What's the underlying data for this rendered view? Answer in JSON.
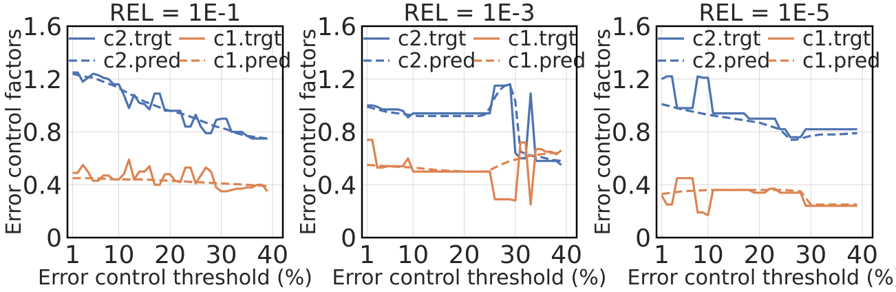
{
  "colors": {
    "c2": "#4c72b0",
    "c1": "#dd8452",
    "grid": "#d9d9d9",
    "axis": "#000000"
  },
  "chart_data": [
    {
      "type": "line",
      "title": "REL = 1E-1",
      "xlabel": "Error control threshold (%)",
      "ylabel": "Error control factors",
      "xlim": [
        0,
        42
      ],
      "ylim": [
        0,
        1.6
      ],
      "xticks": [
        1,
        10,
        20,
        30,
        40
      ],
      "yticks": [
        "0",
        "0.4",
        "0.8",
        "1.2",
        "1.6"
      ],
      "grid": true,
      "legend": "top, 2 columns",
      "series": [
        {
          "name": "c2.trgt",
          "style": "solid",
          "color": "c2",
          "x": [
            1,
            2,
            3,
            4,
            5,
            6,
            7,
            8,
            9,
            10,
            11,
            12,
            13,
            14,
            15,
            16,
            17,
            18,
            19,
            20,
            21,
            22,
            23,
            24,
            25,
            26,
            27,
            28,
            29,
            30,
            31,
            32,
            33,
            34,
            35,
            36,
            37,
            38,
            39
          ],
          "y": [
            1.25,
            1.25,
            1.18,
            1.21,
            1.24,
            1.23,
            1.21,
            1.2,
            1.16,
            1.16,
            1.08,
            0.98,
            1.08,
            1.02,
            1.01,
            0.97,
            1.09,
            1.09,
            0.96,
            0.96,
            0.96,
            0.96,
            0.84,
            0.84,
            0.93,
            0.84,
            0.79,
            0.79,
            0.89,
            0.9,
            0.9,
            0.8,
            0.8,
            0.8,
            0.77,
            0.75,
            0.75,
            0.75,
            0.75
          ]
        },
        {
          "name": "c2.pred",
          "style": "dashed",
          "color": "c2",
          "x": [
            1,
            3,
            5,
            7,
            9,
            11,
            13,
            15,
            17,
            19,
            21,
            23,
            25,
            27,
            29,
            31,
            33,
            35,
            37,
            39
          ],
          "y": [
            1.24,
            1.22,
            1.21,
            1.18,
            1.15,
            1.11,
            1.07,
            1.03,
            1.0,
            0.97,
            0.95,
            0.93,
            0.9,
            0.87,
            0.84,
            0.82,
            0.79,
            0.77,
            0.76,
            0.75
          ]
        },
        {
          "name": "c1.trgt",
          "style": "solid",
          "color": "c1",
          "x": [
            1,
            2,
            3,
            4,
            5,
            6,
            7,
            8,
            9,
            10,
            11,
            12,
            13,
            14,
            15,
            16,
            17,
            18,
            19,
            20,
            21,
            22,
            23,
            24,
            25,
            26,
            27,
            28,
            29,
            30,
            31,
            32,
            33,
            34,
            35,
            36,
            37,
            38,
            39
          ],
          "y": [
            0.49,
            0.49,
            0.55,
            0.5,
            0.43,
            0.43,
            0.47,
            0.47,
            0.44,
            0.44,
            0.48,
            0.59,
            0.44,
            0.5,
            0.5,
            0.54,
            0.4,
            0.4,
            0.48,
            0.48,
            0.43,
            0.42,
            0.53,
            0.53,
            0.41,
            0.47,
            0.53,
            0.5,
            0.38,
            0.35,
            0.35,
            0.36,
            0.37,
            0.37,
            0.38,
            0.38,
            0.4,
            0.4,
            0.35
          ]
        },
        {
          "name": "c1.pred",
          "style": "dashed",
          "color": "c1",
          "x": [
            1,
            5,
            10,
            15,
            20,
            25,
            30,
            35,
            39
          ],
          "y": [
            0.45,
            0.45,
            0.44,
            0.44,
            0.43,
            0.42,
            0.41,
            0.4,
            0.39
          ]
        }
      ]
    },
    {
      "type": "line",
      "title": "REL = 1E-3",
      "xlabel": "Error control threshold (%)",
      "ylabel": "Error control factors",
      "xlim": [
        0,
        42
      ],
      "ylim": [
        0,
        1.6
      ],
      "xticks": [
        1,
        10,
        20,
        30,
        40
      ],
      "yticks": [
        "0",
        "0.4",
        "0.8",
        "1.2",
        "1.6"
      ],
      "grid": true,
      "legend": "top, 2 columns",
      "series": [
        {
          "name": "c2.trgt",
          "style": "solid",
          "color": "c2",
          "x": [
            1,
            2,
            3,
            4,
            5,
            6,
            7,
            8,
            9,
            10,
            11,
            12,
            13,
            14,
            15,
            16,
            17,
            18,
            19,
            20,
            21,
            22,
            23,
            24,
            25,
            26,
            27,
            28,
            29,
            30,
            31,
            32,
            33,
            34,
            35,
            36,
            37,
            38,
            39
          ],
          "y": [
            1.0,
            1.0,
            0.99,
            0.97,
            0.97,
            0.97,
            0.97,
            0.96,
            0.91,
            0.94,
            0.94,
            0.94,
            0.94,
            0.94,
            0.94,
            0.94,
            0.94,
            0.94,
            0.94,
            0.94,
            0.94,
            0.94,
            0.94,
            0.94,
            0.94,
            1.15,
            1.15,
            1.15,
            1.16,
            0.64,
            0.6,
            0.6,
            1.09,
            0.58,
            0.58,
            0.58,
            0.58,
            0.58,
            0.55
          ]
        },
        {
          "name": "c2.pred",
          "style": "dashed",
          "color": "c2",
          "x": [
            1,
            3,
            5,
            7,
            9,
            11,
            13,
            15,
            17,
            19,
            21,
            23,
            24,
            25,
            26,
            27,
            28,
            29,
            30,
            31,
            33,
            35,
            37,
            39
          ],
          "y": [
            0.99,
            0.97,
            0.95,
            0.94,
            0.93,
            0.92,
            0.92,
            0.92,
            0.92,
            0.92,
            0.92,
            0.92,
            0.93,
            0.98,
            1.06,
            1.12,
            1.15,
            1.15,
            1.03,
            0.65,
            0.62,
            0.61,
            0.59,
            0.58
          ]
        },
        {
          "name": "c1.trgt",
          "style": "solid",
          "color": "c1",
          "x": [
            1,
            2,
            3,
            4,
            5,
            6,
            7,
            8,
            9,
            10,
            11,
            12,
            13,
            14,
            15,
            16,
            17,
            18,
            19,
            20,
            21,
            22,
            23,
            24,
            25,
            26,
            27,
            28,
            29,
            30,
            31,
            32,
            33,
            34,
            35,
            36,
            37,
            38,
            39
          ],
          "y": [
            0.74,
            0.74,
            0.53,
            0.53,
            0.54,
            0.54,
            0.54,
            0.54,
            0.6,
            0.5,
            0.5,
            0.5,
            0.5,
            0.5,
            0.5,
            0.5,
            0.5,
            0.5,
            0.5,
            0.5,
            0.5,
            0.5,
            0.5,
            0.5,
            0.5,
            0.29,
            0.29,
            0.29,
            0.29,
            0.28,
            0.72,
            0.72,
            0.25,
            0.67,
            0.67,
            0.65,
            0.65,
            0.63,
            0.66
          ]
        },
        {
          "name": "c1.pred",
          "style": "dashed",
          "color": "c1",
          "x": [
            1,
            5,
            10,
            15,
            20,
            24,
            25,
            27,
            29,
            31,
            33,
            35,
            37,
            39
          ],
          "y": [
            0.55,
            0.54,
            0.53,
            0.51,
            0.5,
            0.5,
            0.51,
            0.55,
            0.58,
            0.6,
            0.62,
            0.63,
            0.64,
            0.64
          ]
        }
      ]
    },
    {
      "type": "line",
      "title": "REL = 1E-5",
      "xlabel": "Error control threshold (%)",
      "ylabel": "Error control factors",
      "xlim": [
        0,
        42
      ],
      "ylim": [
        0,
        1.6
      ],
      "xticks": [
        1,
        10,
        20,
        30,
        40
      ],
      "yticks": [
        "0",
        "0.4",
        "0.8",
        "1.2",
        "1.6"
      ],
      "grid": true,
      "legend": "top, 2 columns",
      "series": [
        {
          "name": "c2.trgt",
          "style": "solid",
          "color": "c2",
          "x": [
            1,
            2,
            3,
            4,
            5,
            6,
            7,
            8,
            9,
            10,
            11,
            12,
            13,
            14,
            15,
            16,
            17,
            18,
            19,
            20,
            21,
            22,
            23,
            24,
            25,
            26,
            27,
            28,
            29,
            30,
            31,
            32,
            33,
            34,
            35,
            36,
            37,
            38,
            39
          ],
          "y": [
            1.2,
            1.22,
            1.22,
            0.98,
            0.98,
            0.98,
            0.98,
            1.22,
            1.21,
            1.21,
            0.94,
            0.94,
            0.94,
            0.94,
            0.94,
            0.94,
            0.94,
            0.9,
            0.9,
            0.9,
            0.9,
            0.9,
            0.9,
            0.82,
            0.82,
            0.76,
            0.76,
            0.76,
            0.82,
            0.82,
            0.82,
            0.82,
            0.82,
            0.82,
            0.82,
            0.82,
            0.82,
            0.82,
            0.82
          ]
        },
        {
          "name": "c2.pred",
          "style": "dashed",
          "color": "c2",
          "x": [
            1,
            5,
            10,
            15,
            20,
            24,
            25,
            26,
            27,
            28,
            30,
            32,
            35,
            39
          ],
          "y": [
            1.01,
            0.97,
            0.93,
            0.9,
            0.87,
            0.82,
            0.78,
            0.74,
            0.74,
            0.75,
            0.77,
            0.78,
            0.78,
            0.79
          ]
        },
        {
          "name": "c1.trgt",
          "style": "solid",
          "color": "c1",
          "x": [
            1,
            2,
            3,
            4,
            5,
            6,
            7,
            8,
            9,
            10,
            11,
            12,
            13,
            14,
            15,
            16,
            17,
            18,
            19,
            20,
            21,
            22,
            23,
            24,
            25,
            26,
            27,
            28,
            29,
            30,
            31,
            32,
            33,
            34,
            35,
            36,
            37,
            38,
            39
          ],
          "y": [
            0.32,
            0.25,
            0.25,
            0.45,
            0.45,
            0.45,
            0.45,
            0.19,
            0.19,
            0.17,
            0.36,
            0.36,
            0.36,
            0.36,
            0.36,
            0.36,
            0.36,
            0.36,
            0.34,
            0.34,
            0.34,
            0.37,
            0.37,
            0.34,
            0.34,
            0.34,
            0.34,
            0.34,
            0.24,
            0.24,
            0.24,
            0.24,
            0.24,
            0.24,
            0.24,
            0.24,
            0.24,
            0.24,
            0.24
          ]
        },
        {
          "name": "c1.pred",
          "style": "dashed",
          "color": "c1",
          "x": [
            1,
            5,
            10,
            15,
            20,
            23,
            25,
            28,
            29,
            30,
            33,
            36,
            39
          ],
          "y": [
            0.33,
            0.35,
            0.36,
            0.36,
            0.36,
            0.36,
            0.36,
            0.35,
            0.3,
            0.25,
            0.25,
            0.25,
            0.25
          ]
        }
      ]
    }
  ]
}
